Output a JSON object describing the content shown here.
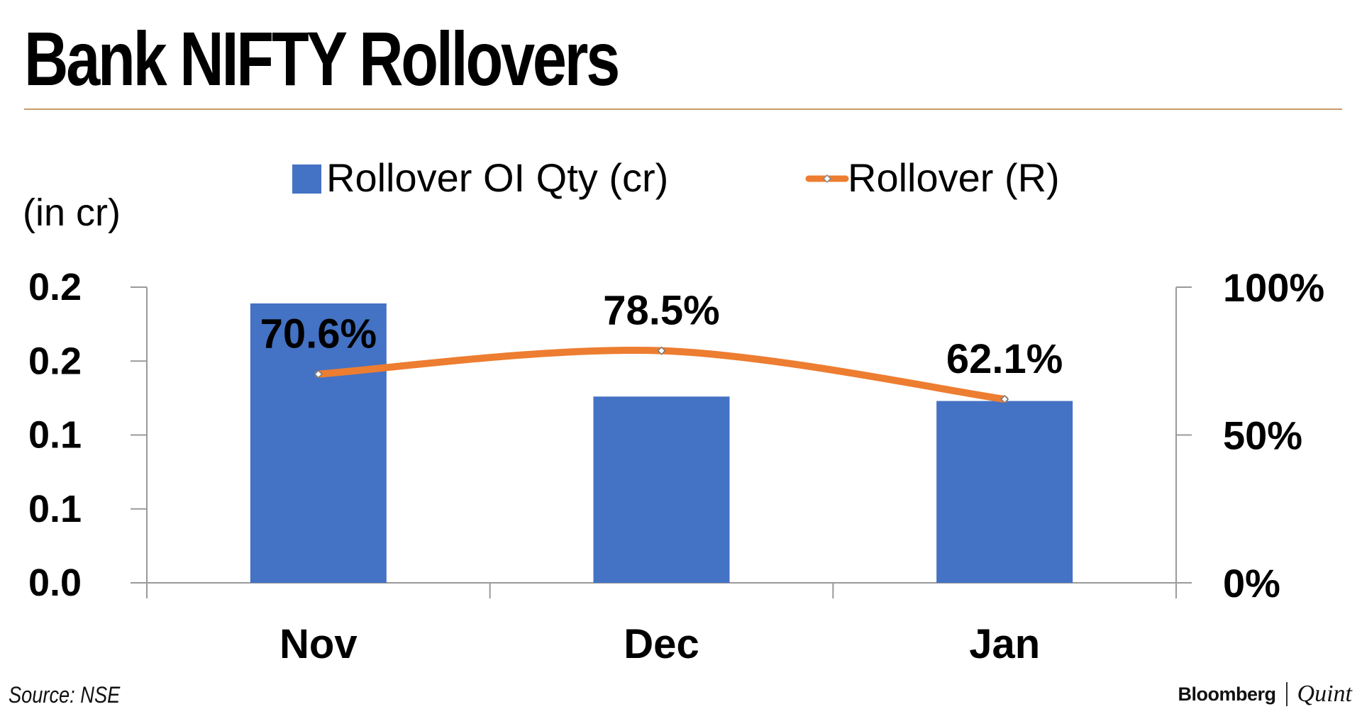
{
  "title": "Bank NIFTY Rollovers",
  "source": "Source: NSE",
  "brand": {
    "name": "Bloomberg",
    "secondary": "Quint"
  },
  "colors": {
    "bar": "#4472c4",
    "line": "#ed7d31",
    "rule": "#c9996a",
    "axis": "#9a9a9a"
  },
  "chart_data": {
    "type": "bar",
    "categories": [
      "Nov",
      "Dec",
      "Jan"
    ],
    "series": [
      {
        "name": "Rollover OI Qty (cr)",
        "type": "bar",
        "axis": "left",
        "values": [
          0.189,
          0.126,
          0.123
        ]
      },
      {
        "name": "Rollover (R)",
        "type": "line",
        "axis": "right",
        "values": [
          70.6,
          78.5,
          62.1
        ],
        "data_labels": [
          "70.6%",
          "78.5%",
          "62.1%"
        ]
      }
    ],
    "ylabel": "(in cr)",
    "y_left": {
      "ylim": [
        0,
        0.2
      ],
      "ticks": [
        0,
        0.05,
        0.1,
        0.15,
        0.2
      ],
      "tick_labels": [
        "0.0",
        "0.1",
        "0.1",
        "0.2",
        "0.2"
      ]
    },
    "y_right": {
      "ylim": [
        0,
        100
      ],
      "ticks": [
        0,
        50,
        100
      ],
      "tick_labels": [
        "0%",
        "50%",
        "100%"
      ]
    },
    "legend": "top-center",
    "grid": false
  }
}
